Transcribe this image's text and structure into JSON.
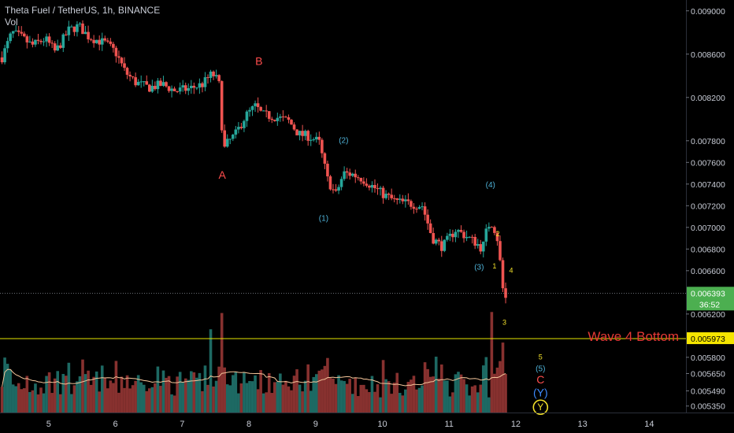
{
  "header": {
    "title": "Theta Fuel / TetherUS, 1h, BINANCE",
    "volume_label": "Vol"
  },
  "colors": {
    "background": "#000000",
    "up": "#26a69a",
    "down": "#ef5350",
    "current_price_bg": "#4caf50",
    "support_line": "#e6e600",
    "annotation_red": "#ff4d4d",
    "annotation_cyan": "#4fb3d9",
    "annotation_yellow": "#f2e02a",
    "annotation_blue": "#3d8bff",
    "volume_ma": "#f5c59a"
  },
  "chart_data": {
    "type": "candlestick",
    "symbol": "Theta Fuel / TetherUS",
    "interval": "1h",
    "exchange": "BINANCE",
    "price_axis": {
      "ylim": [
        0.00529,
        0.0091
      ],
      "ticks": [
        "0.009000",
        "0.008600",
        "0.008200",
        "0.007800",
        "0.007600",
        "0.007400",
        "0.007200",
        "0.007000",
        "0.006800",
        "0.006600",
        "0.006200",
        "0.005800",
        "0.005650",
        "0.005490",
        "0.005350"
      ],
      "tick_values": [
        0.009,
        0.0086,
        0.0082,
        0.0078,
        0.0076,
        0.0074,
        0.0072,
        0.007,
        0.0068,
        0.0066,
        0.0062,
        0.0058,
        0.00565,
        0.00549,
        0.00535
      ]
    },
    "x_axis": {
      "ticks": [
        "5",
        "6",
        "7",
        "8",
        "9",
        "10",
        "11",
        "12",
        "13",
        "14"
      ],
      "tick_values": [
        5,
        6,
        7,
        8,
        9,
        10,
        11,
        12,
        13,
        14
      ],
      "xlim": [
        4.27,
        14.55
      ]
    },
    "current_price": {
      "label": "0.006393",
      "value": 0.006393,
      "countdown": "36:52"
    },
    "support_level": {
      "label": "0.005973",
      "value": 0.005973,
      "text": "Wave 4 Bottom"
    },
    "price_path": [
      [
        4.3,
        0.00857
      ],
      [
        4.45,
        0.0088
      ],
      [
        4.6,
        0.00875
      ],
      [
        4.75,
        0.00868
      ],
      [
        4.95,
        0.00874
      ],
      [
        5.1,
        0.00862
      ],
      [
        5.3,
        0.00882
      ],
      [
        5.45,
        0.00886
      ],
      [
        5.6,
        0.00876
      ],
      [
        5.85,
        0.0087
      ],
      [
        6.0,
        0.00862
      ],
      [
        6.15,
        0.00843
      ],
      [
        6.3,
        0.00834
      ],
      [
        6.5,
        0.00829
      ],
      [
        6.7,
        0.00832
      ],
      [
        6.9,
        0.00826
      ],
      [
        7.1,
        0.00828
      ],
      [
        7.3,
        0.00832
      ],
      [
        7.45,
        0.00842
      ],
      [
        7.55,
        0.00834
      ],
      [
        7.62,
        0.00771
      ],
      [
        7.68,
        0.00778
      ],
      [
        7.8,
        0.00786
      ],
      [
        7.95,
        0.00803
      ],
      [
        8.1,
        0.00812
      ],
      [
        8.2,
        0.00804
      ],
      [
        8.4,
        0.00802
      ],
      [
        8.6,
        0.00798
      ],
      [
        8.75,
        0.00786
      ],
      [
        8.9,
        0.00784
      ],
      [
        9.05,
        0.00779
      ],
      [
        9.18,
        0.00744
      ],
      [
        9.3,
        0.0073
      ],
      [
        9.42,
        0.0075
      ],
      [
        9.55,
        0.00749
      ],
      [
        9.7,
        0.00745
      ],
      [
        9.85,
        0.00738
      ],
      [
        10.0,
        0.00731
      ],
      [
        10.2,
        0.00724
      ],
      [
        10.4,
        0.00722
      ],
      [
        10.6,
        0.0072
      ],
      [
        10.75,
        0.0069
      ],
      [
        10.9,
        0.00682
      ],
      [
        11.1,
        0.00698
      ],
      [
        11.25,
        0.00692
      ],
      [
        11.4,
        0.00686
      ],
      [
        11.5,
        0.0068
      ],
      [
        11.58,
        0.00702
      ],
      [
        11.65,
        0.00704
      ],
      [
        11.72,
        0.00691
      ],
      [
        11.78,
        0.0066
      ],
      [
        11.83,
        0.00628
      ],
      [
        11.86,
        0.00639
      ]
    ],
    "annotations": [
      {
        "text": "A",
        "x": 7.6,
        "y": 0.00745,
        "color": "red"
      },
      {
        "text": "B",
        "x": 8.15,
        "y": 0.0085,
        "color": "red"
      },
      {
        "text": "(1)",
        "x": 9.12,
        "y": 0.00706,
        "color": "cyan"
      },
      {
        "text": "(2)",
        "x": 9.42,
        "y": 0.00778,
        "color": "cyan"
      },
      {
        "text": "(3)",
        "x": 11.45,
        "y": 0.00661,
        "color": "cyan"
      },
      {
        "text": "(4)",
        "x": 11.62,
        "y": 0.00737,
        "color": "cyan"
      },
      {
        "text": "1",
        "x": 11.68,
        "y": 0.00662,
        "color": "yellow"
      },
      {
        "text": "2",
        "x": 11.73,
        "y": 0.00692,
        "color": "yellow"
      },
      {
        "text": "3",
        "x": 11.83,
        "y": 0.0061,
        "color": "yellow"
      },
      {
        "text": "4",
        "x": 11.93,
        "y": 0.00658,
        "color": "yellow"
      },
      {
        "text": "5",
        "x": 12.37,
        "y": 0.00578,
        "color": "yellow"
      },
      {
        "text": "(5)",
        "x": 12.37,
        "y": 0.00567,
        "color": "cyan"
      },
      {
        "text": "C",
        "x": 12.37,
        "y": 0.00556,
        "color": "red"
      },
      {
        "text": "(Y)",
        "x": 12.37,
        "y": 0.00544,
        "color": "blue"
      },
      {
        "text": "Y",
        "x": 12.37,
        "y": 0.00531,
        "color": "yellow",
        "circled": true
      }
    ],
    "volume": {
      "description": "volume histogram with moving average; spikes near 7.4, 7.6 and 11.6",
      "spikes": [
        [
          4.4,
          0.48
        ],
        [
          7.42,
          0.82
        ],
        [
          7.6,
          0.98
        ],
        [
          11.62,
          0.99
        ],
        [
          10.82,
          0.55
        ]
      ]
    }
  }
}
